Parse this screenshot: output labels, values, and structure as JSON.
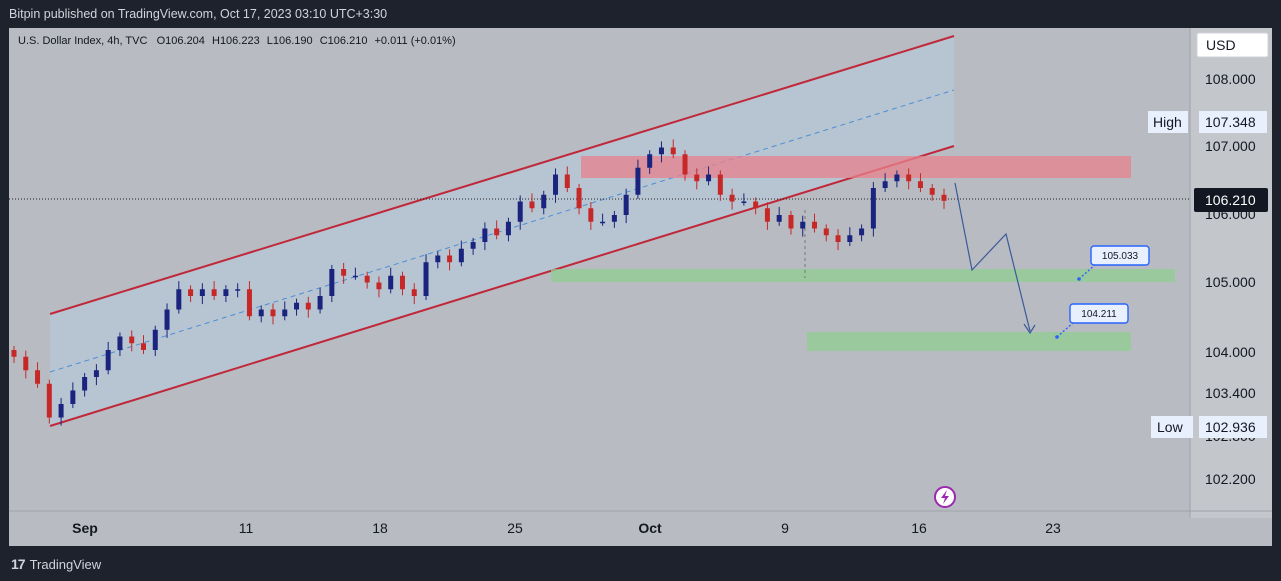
{
  "header": {
    "published_text": "Bitpin published on TradingView.com, Oct 17, 2023 03:10 UTC+3:30"
  },
  "legend": {
    "symbol": "U.S. Dollar Index, 4h, TVC",
    "open_label": "O",
    "open": "106.204",
    "high_label": "H",
    "high": "106.223",
    "low_label": "L",
    "low": "106.190",
    "close_label": "C",
    "close": "106.210",
    "change": "+0.011 (+0.01%)"
  },
  "price_axis": {
    "currency": "USD",
    "high_label": "High",
    "high_value": "107.348",
    "low_label": "Low",
    "low_value": "102.936",
    "last_price": "106.210"
  },
  "callouts": {
    "target1": "105.033",
    "target2": "104.211"
  },
  "footer": {
    "brand": "TradingView"
  },
  "colors": {
    "up_candle": "#1a237e",
    "down_candle": "#c62828",
    "channel": "#c0283a",
    "resistance_zone": "#e8818c",
    "support_zone": "#8fce8f",
    "callout_border": "#2962ff"
  },
  "chart_data": {
    "type": "candlestick",
    "title": "U.S. Dollar Index, 4h, TVC",
    "y_ticks": [
      "108.000",
      "107.000",
      "106.000",
      "105.000",
      "104.000",
      "103.400",
      "102.800",
      "102.200"
    ],
    "x_ticks": [
      "Sep",
      "11",
      "18",
      "25",
      "Oct",
      "9",
      "16",
      "23"
    ],
    "ylim": [
      101.9,
      108.4
    ],
    "last_price": 106.21,
    "period_high": 107.348,
    "period_low": 102.936,
    "closes": [
      103.9,
      103.7,
      103.5,
      103.0,
      103.2,
      103.4,
      103.6,
      103.7,
      104.0,
      104.2,
      104.1,
      104.0,
      104.3,
      104.6,
      104.9,
      104.8,
      104.9,
      104.8,
      104.9,
      104.9,
      104.5,
      104.6,
      104.5,
      104.6,
      104.7,
      104.6,
      104.8,
      105.2,
      105.1,
      105.1,
      105.0,
      104.9,
      105.1,
      104.9,
      104.8,
      105.3,
      105.4,
      105.3,
      105.5,
      105.6,
      105.8,
      105.7,
      105.9,
      106.2,
      106.1,
      106.3,
      106.6,
      106.4,
      106.1,
      105.9,
      105.9,
      106.0,
      106.3,
      106.7,
      106.9,
      107.0,
      106.9,
      106.6,
      106.5,
      106.6,
      106.3,
      106.2,
      106.2,
      106.1,
      105.9,
      106.0,
      105.8,
      105.9,
      105.8,
      105.7,
      105.6,
      105.7,
      105.8,
      106.4,
      106.5,
      106.6,
      106.5,
      106.4,
      106.3,
      106.21
    ],
    "resistance_zone": [
      106.5,
      106.8
    ],
    "support_zones": [
      [
        105.0,
        105.15
      ],
      [
        104.05,
        104.3
      ]
    ],
    "targets": [
      105.033,
      104.211
    ]
  }
}
